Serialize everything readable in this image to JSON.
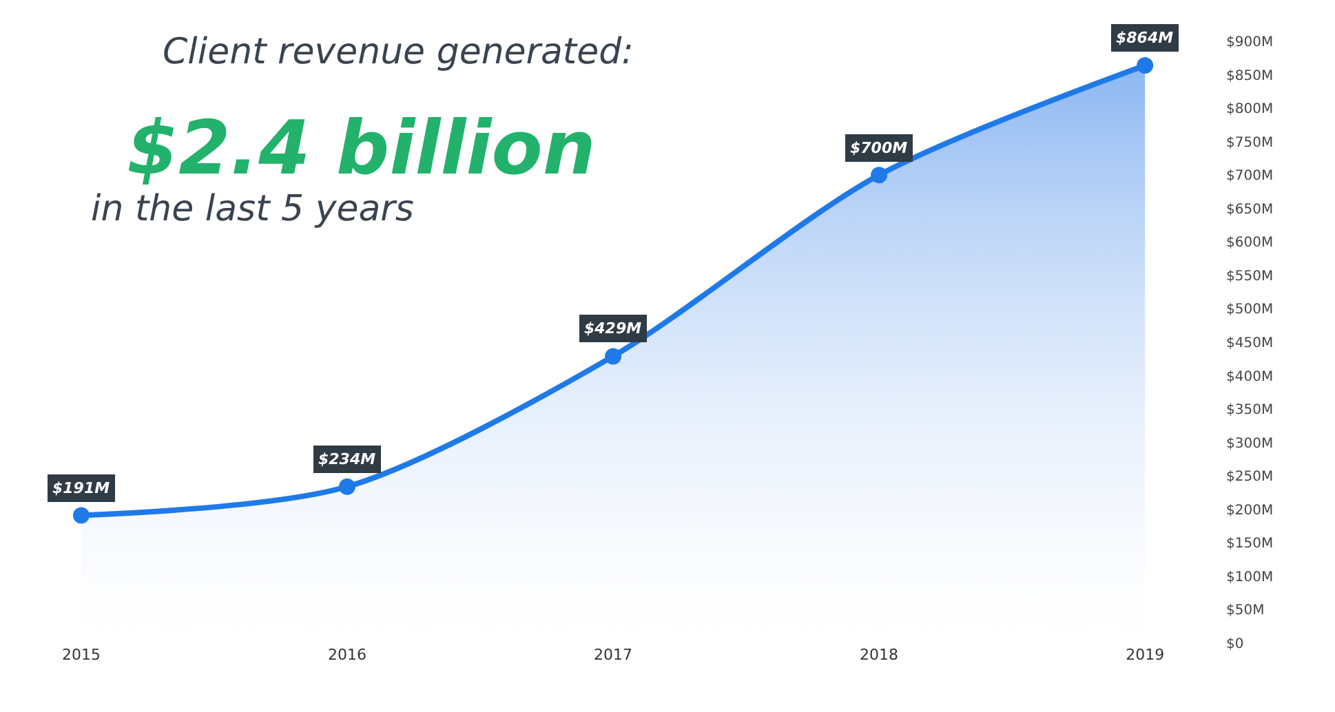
{
  "chart_data": {
    "type": "area",
    "title": "Client revenue generated:",
    "subtitle": "$2.4 billion",
    "annotations": [
      "in the last 5 years"
    ],
    "categories": [
      "2015",
      "2016",
      "2017",
      "2018",
      "2019"
    ],
    "series": [
      {
        "color": "#1f7ae8",
        "values": [
          191,
          234,
          429,
          700,
          864
        ],
        "value_labels": [
          "$191M",
          "$234M",
          "$429M",
          "$700M",
          "$864M"
        ]
      }
    ],
    "ylim": [
      0,
      900
    ],
    "yticks": [
      {
        "value": 0,
        "label": "$0"
      },
      {
        "value": 50,
        "label": "$50M"
      },
      {
        "value": 100,
        "label": "$100M"
      },
      {
        "value": 150,
        "label": "$150M"
      },
      {
        "value": 200,
        "label": "$200M"
      },
      {
        "value": 250,
        "label": "$250M"
      },
      {
        "value": 300,
        "label": "$300M"
      },
      {
        "value": 350,
        "label": "$350M"
      },
      {
        "value": 400,
        "label": "$400M"
      },
      {
        "value": 450,
        "label": "$450M"
      },
      {
        "value": 500,
        "label": "$500M"
      },
      {
        "value": 550,
        "label": "$550M"
      },
      {
        "value": 600,
        "label": "$600M"
      },
      {
        "value": 650,
        "label": "$650M"
      },
      {
        "value": 700,
        "label": "$700M"
      },
      {
        "value": 750,
        "label": "$750M"
      },
      {
        "value": 800,
        "label": "$800M"
      },
      {
        "value": 850,
        "label": "$850M"
      },
      {
        "value": 900,
        "label": "$900M"
      }
    ],
    "grid": false,
    "marker": "circle",
    "line_style": "solid"
  }
}
